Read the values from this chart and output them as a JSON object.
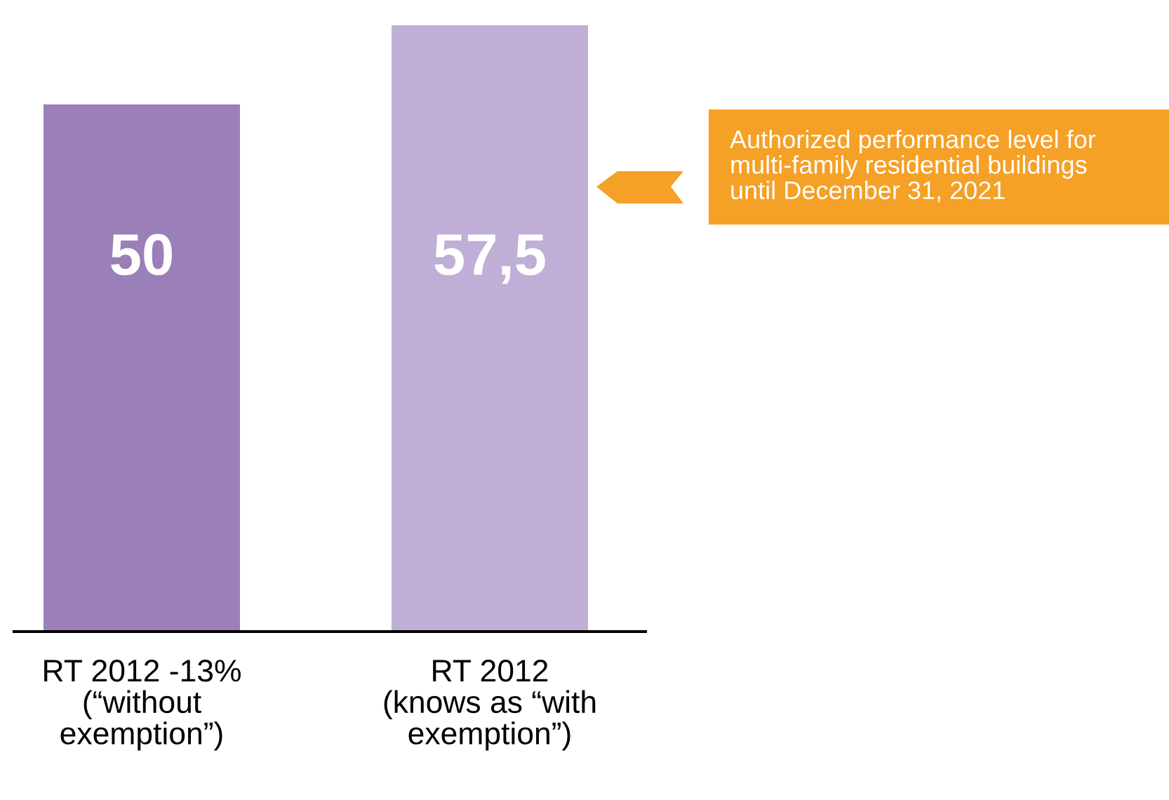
{
  "chart_data": {
    "type": "bar",
    "categories": [
      "RT 2012 -13%\n(“without\nexemption”)",
      "RT 2012\n(knows as “with\nexemption”)"
    ],
    "values": [
      50,
      57.5
    ],
    "colors": [
      "#9b7fb8",
      "#bfaed6"
    ],
    "value_labels": [
      "50",
      "57,5"
    ],
    "annotations": [
      "Authorized performance level for\nmulti-family residential buildings\nuntil December 31, 2021"
    ],
    "grid": false,
    "legend": false
  }
}
